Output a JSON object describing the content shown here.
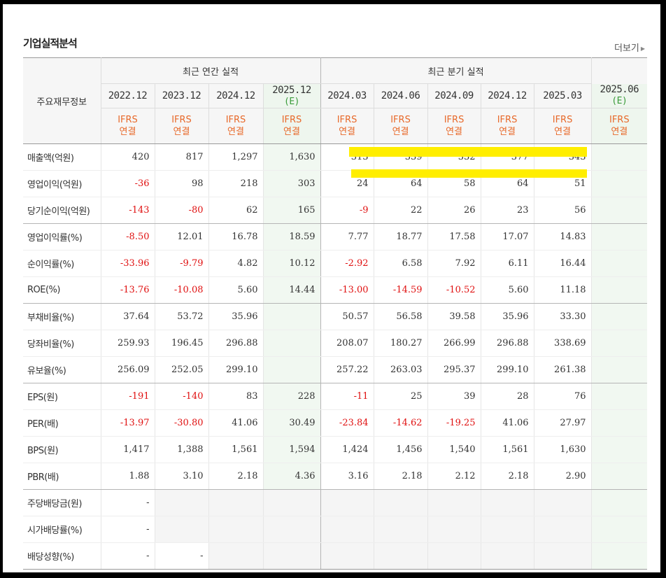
{
  "section": {
    "title": "기업실적분석",
    "more_label": "더보기"
  },
  "header": {
    "stub_label": "주요재무정보",
    "annual_group": "최근 연간 실적",
    "quarter_group": "최근 분기 실적",
    "annual_years": [
      "2022.12",
      "2023.12",
      "2024.12",
      "2025.12"
    ],
    "quarter_periods": [
      "2024.03",
      "2024.06",
      "2024.09",
      "2024.12",
      "2025.03",
      "2025.06"
    ],
    "estimate_mark": "(E)",
    "ifrs_line1": "IFRS",
    "ifrs_line2": "연결"
  },
  "rows": [
    {
      "label": "매출액(억원)",
      "values": [
        "420",
        "817",
        "1,297",
        "1,630",
        "313",
        "339",
        "332",
        "377",
        "343",
        ""
      ]
    },
    {
      "label": "영업이익(억원)",
      "values": [
        "-36",
        "98",
        "218",
        "303",
        "24",
        "64",
        "58",
        "64",
        "51",
        ""
      ]
    },
    {
      "label": "당기순이익(억원)",
      "values": [
        "-143",
        "-80",
        "62",
        "165",
        "-9",
        "22",
        "26",
        "23",
        "56",
        ""
      ]
    },
    {
      "label": "영업이익률(%)",
      "values": [
        "-8.50",
        "12.01",
        "16.78",
        "18.59",
        "7.77",
        "18.77",
        "17.58",
        "17.07",
        "14.83",
        ""
      ]
    },
    {
      "label": "순이익률(%)",
      "values": [
        "-33.96",
        "-9.79",
        "4.82",
        "10.12",
        "-2.92",
        "6.58",
        "7.92",
        "6.11",
        "16.44",
        ""
      ]
    },
    {
      "label": "ROE(%)",
      "values": [
        "-13.76",
        "-10.08",
        "5.60",
        "14.44",
        "-13.00",
        "-14.59",
        "-10.52",
        "5.60",
        "11.18",
        ""
      ]
    },
    {
      "label": "부채비율(%)",
      "values": [
        "37.64",
        "53.72",
        "35.96",
        "",
        "50.57",
        "56.58",
        "39.58",
        "35.96",
        "33.30",
        ""
      ]
    },
    {
      "label": "당좌비율(%)",
      "values": [
        "259.93",
        "196.45",
        "296.88",
        "",
        "208.07",
        "180.27",
        "266.99",
        "296.88",
        "338.69",
        ""
      ]
    },
    {
      "label": "유보율(%)",
      "values": [
        "256.09",
        "252.05",
        "299.10",
        "",
        "257.22",
        "263.03",
        "295.37",
        "299.10",
        "261.38",
        ""
      ]
    },
    {
      "label": "EPS(원)",
      "values": [
        "-191",
        "-140",
        "83",
        "228",
        "-11",
        "25",
        "39",
        "28",
        "76",
        ""
      ]
    },
    {
      "label": "PER(배)",
      "values": [
        "-13.97",
        "-30.80",
        "41.06",
        "30.49",
        "-23.84",
        "-14.62",
        "-19.25",
        "41.06",
        "27.97",
        ""
      ]
    },
    {
      "label": "BPS(원)",
      "values": [
        "1,417",
        "1,388",
        "1,561",
        "1,594",
        "1,424",
        "1,456",
        "1,540",
        "1,561",
        "1,630",
        ""
      ]
    },
    {
      "label": "PBR(배)",
      "values": [
        "1.88",
        "3.10",
        "2.18",
        "4.36",
        "3.16",
        "2.18",
        "2.12",
        "2.18",
        "2.90",
        ""
      ]
    },
    {
      "label": "주당배당금(원)",
      "values": [
        "-",
        "",
        "",
        "",
        "",
        "",
        "",
        "",
        "",
        ""
      ]
    },
    {
      "label": "시가배당률(%)",
      "values": [
        "-",
        "",
        "",
        "",
        "",
        "",
        "",
        "",
        "",
        ""
      ]
    },
    {
      "label": "배당성향(%)",
      "values": [
        "-",
        "-",
        "",
        "",
        "",
        "",
        "",
        "",
        "",
        ""
      ]
    }
  ],
  "colors": {
    "negative": "#e01010",
    "ifrs": "#e8692a",
    "estimate": "#3a9b3a",
    "highlight": "#ffee00"
  }
}
